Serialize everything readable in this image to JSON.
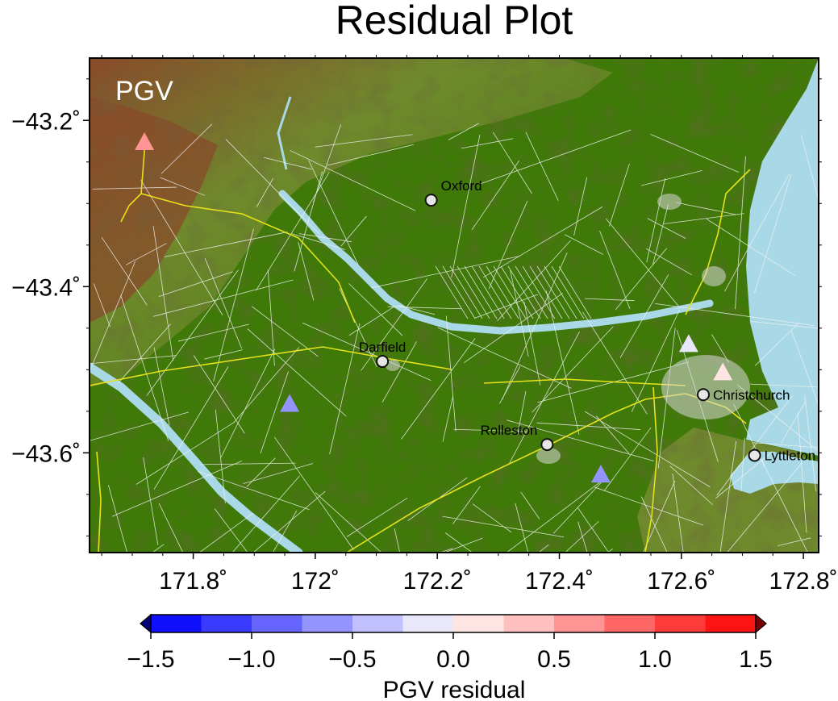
{
  "title": "Residual Plot",
  "panel_label": "PGV",
  "x_ticks": [
    {
      "value": 171.8,
      "label": "171.8˚"
    },
    {
      "value": 172.0,
      "label": "172˚"
    },
    {
      "value": 172.2,
      "label": "172.2˚"
    },
    {
      "value": 172.4,
      "label": "172.4˚"
    },
    {
      "value": 172.6,
      "label": "172.6˚"
    },
    {
      "value": 172.8,
      "label": "172.8˚"
    }
  ],
  "y_ticks": [
    {
      "value": -43.2,
      "label": "−43.2˚"
    },
    {
      "value": -43.4,
      "label": "−43.4˚"
    },
    {
      "value": -43.6,
      "label": "−43.6˚"
    }
  ],
  "extent": {
    "lon": [
      171.63,
      172.825
    ],
    "lat": [
      -43.72,
      -43.125
    ]
  },
  "colors": {
    "lowland": "#3f7a08",
    "terrain_mid": "#6f8a2c",
    "terrain_high": "#8a4a2a",
    "water": "#a9d8e6",
    "roads": "#f2f2f2",
    "highways": "#e6e21a",
    "town": "#d8d8d8"
  },
  "towns": [
    {
      "name": "Oxford",
      "lon": 172.19,
      "lat": -43.296,
      "label_pos": "upper-right"
    },
    {
      "name": "Darfield",
      "lon": 172.11,
      "lat": -43.49,
      "label_pos": "above"
    },
    {
      "name": "Rolleston",
      "lon": 172.38,
      "lat": -43.59,
      "label_pos": "upper-left"
    },
    {
      "name": "Christchurch",
      "lon": 172.636,
      "lat": -43.53,
      "label_pos": "right"
    },
    {
      "name": "Lyttleton",
      "lon": 172.72,
      "lat": -43.603,
      "label_pos": "right"
    }
  ],
  "stations": [
    {
      "lon": 171.72,
      "lat": -43.225,
      "residual": 0.6
    },
    {
      "lon": 171.958,
      "lat": -43.54,
      "residual": -0.75
    },
    {
      "lon": 172.468,
      "lat": -43.625,
      "residual": -0.75
    },
    {
      "lon": 172.612,
      "lat": -43.468,
      "residual": -0.1
    },
    {
      "lon": 172.668,
      "lat": -43.502,
      "residual": 0.1
    }
  ],
  "colorbar": {
    "label": "PGV residual",
    "min": -1.5,
    "max": 1.5,
    "step": 0.25,
    "tick_labels": [
      "−1.5",
      "−1.0",
      "−0.5",
      "0.0",
      "0.5",
      "1.0",
      "1.5"
    ],
    "bin_colors": [
      "#1010ff",
      "#3a3aff",
      "#6666ff",
      "#9494ff",
      "#c0c0ff",
      "#e8e8fa",
      "#ffe4e4",
      "#ffc0c0",
      "#ff9494",
      "#ff6666",
      "#ff3a3a",
      "#ff1414"
    ],
    "low_color": "#00007a",
    "high_color": "#7a0000"
  }
}
